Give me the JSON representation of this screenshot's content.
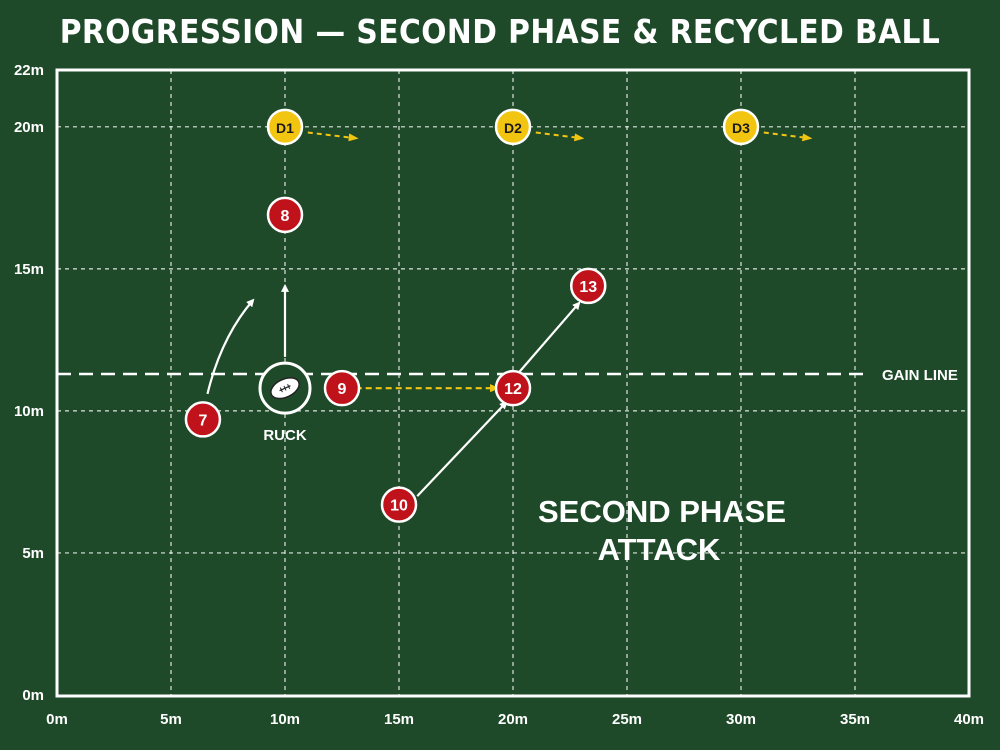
{
  "title": "PROGRESSION — SECOND PHASE & RECYCLED BALL",
  "axes": {
    "x_ticks": [
      "0m",
      "5m",
      "10m",
      "15m",
      "20m",
      "25m",
      "30m",
      "35m",
      "40m"
    ],
    "y_ticks": [
      "0m",
      "5m",
      "10m",
      "15m",
      "20m",
      "22m"
    ],
    "x_range_m": [
      0,
      40
    ],
    "y_range_m": [
      0,
      22
    ]
  },
  "gain_line": {
    "label": "GAIN LINE",
    "y_m": 11.3
  },
  "ruck": {
    "label": "RUCK",
    "x_m": 10,
    "y_m": 10.8
  },
  "callout": {
    "line1": "SECOND PHASE",
    "line2": "ATTACK"
  },
  "colors": {
    "pitch": "#1f4a2a",
    "attack": "#c0121a",
    "defence": "#f2c511",
    "lines": "#ffffff"
  },
  "players": [
    {
      "label": "D1",
      "team": "defence",
      "x_m": 10,
      "y_m": 20.0
    },
    {
      "label": "D2",
      "team": "defence",
      "x_m": 20,
      "y_m": 20.0
    },
    {
      "label": "D3",
      "team": "defence",
      "x_m": 30,
      "y_m": 20.0
    },
    {
      "label": "8",
      "team": "attack",
      "x_m": 10,
      "y_m": 16.9
    },
    {
      "label": "13",
      "team": "attack",
      "x_m": 23.3,
      "y_m": 14.4
    },
    {
      "label": "9",
      "team": "attack",
      "x_m": 12.5,
      "y_m": 10.8
    },
    {
      "label": "12",
      "team": "attack",
      "x_m": 20,
      "y_m": 10.8
    },
    {
      "label": "7",
      "team": "attack",
      "x_m": 6.4,
      "y_m": 9.7
    },
    {
      "label": "10",
      "team": "attack",
      "x_m": 15,
      "y_m": 6.7
    }
  ],
  "movements": [
    {
      "type": "run",
      "from": [
        10,
        11.9
      ],
      "to": [
        10,
        14.4
      ]
    },
    {
      "type": "run",
      "from": [
        20.2,
        11.3
      ],
      "to": [
        22.9,
        13.8
      ]
    },
    {
      "type": "run",
      "from": [
        15.8,
        7.0
      ],
      "to": [
        19.7,
        10.3
      ]
    },
    {
      "type": "run_curve",
      "from": [
        6.6,
        10.6
      ],
      "ctrl": [
        7.2,
        12.6
      ],
      "to": [
        8.6,
        13.9
      ]
    },
    {
      "type": "pass",
      "from": [
        13.1,
        10.8
      ],
      "to": [
        19.3,
        10.8
      ]
    },
    {
      "type": "drift",
      "from": [
        11.0,
        19.8
      ],
      "to": [
        13.1,
        19.6
      ]
    },
    {
      "type": "drift",
      "from": [
        21.0,
        19.8
      ],
      "to": [
        23.0,
        19.6
      ]
    },
    {
      "type": "drift",
      "from": [
        31.0,
        19.8
      ],
      "to": [
        33.0,
        19.6
      ]
    }
  ]
}
